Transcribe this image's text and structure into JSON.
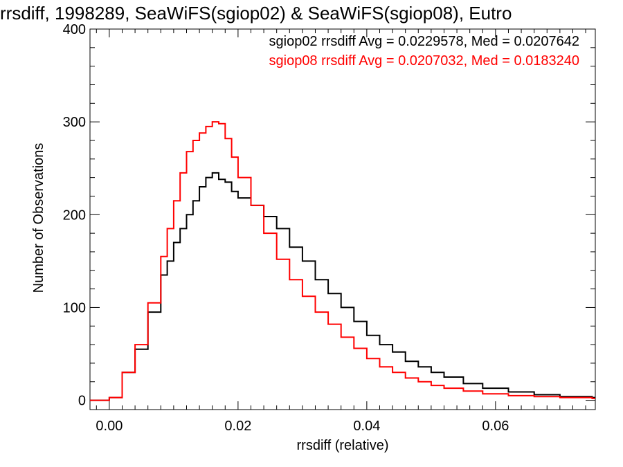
{
  "chart_data": {
    "type": "line",
    "title": "rrsdiff, 1998289, SeaWiFS(sgiop02) & SeaWiFS(sgiop08), Eutro",
    "xlabel": "rrsdiff (relative)",
    "ylabel": "Number of Observations",
    "xlim": [
      -0.003,
      0.0755
    ],
    "ylim": [
      -10,
      400
    ],
    "xticks": [
      0.0,
      0.02,
      0.04,
      0.06
    ],
    "xtick_labels": [
      "0.00",
      "0.02",
      "0.04",
      "0.06"
    ],
    "yticks": [
      0,
      100,
      200,
      300,
      400
    ],
    "ytick_labels": [
      "0",
      "100",
      "200",
      "300",
      "400"
    ],
    "grid": false,
    "legend_position": "top-right",
    "legend": [
      "sgiop02 rrsdiff Avg = 0.0229578, Med = 0.0207642",
      "sgiop08 rrsdiff Avg = 0.0207032, Med = 0.0183240"
    ],
    "series": [
      {
        "color": "#000000",
        "x": [
          0.0,
          0.002,
          0.004,
          0.006,
          0.008,
          0.009,
          0.01,
          0.011,
          0.012,
          0.013,
          0.014,
          0.015,
          0.016,
          0.017,
          0.018,
          0.019,
          0.02,
          0.022,
          0.024,
          0.026,
          0.028,
          0.03,
          0.032,
          0.034,
          0.036,
          0.038,
          0.04,
          0.042,
          0.044,
          0.046,
          0.048,
          0.05,
          0.052,
          0.055,
          0.058,
          0.062,
          0.066,
          0.07,
          0.075
        ],
        "y": [
          3,
          30,
          55,
          95,
          135,
          150,
          170,
          185,
          200,
          215,
          230,
          240,
          245,
          238,
          235,
          225,
          218,
          210,
          198,
          185,
          165,
          150,
          130,
          115,
          100,
          85,
          70,
          60,
          52,
          42,
          36,
          30,
          25,
          18,
          13,
          9,
          6,
          4,
          3
        ]
      },
      {
        "color": "#ff0000",
        "x": [
          0.0,
          0.002,
          0.004,
          0.006,
          0.008,
          0.009,
          0.01,
          0.011,
          0.012,
          0.013,
          0.014,
          0.015,
          0.016,
          0.017,
          0.018,
          0.019,
          0.02,
          0.022,
          0.024,
          0.026,
          0.028,
          0.03,
          0.032,
          0.034,
          0.036,
          0.038,
          0.04,
          0.042,
          0.044,
          0.046,
          0.048,
          0.05,
          0.052,
          0.055,
          0.058,
          0.062,
          0.066,
          0.07,
          0.075
        ],
        "y": [
          3,
          30,
          60,
          105,
          155,
          185,
          215,
          245,
          268,
          280,
          288,
          295,
          300,
          298,
          282,
          262,
          240,
          210,
          180,
          152,
          130,
          112,
          95,
          82,
          68,
          56,
          45,
          36,
          30,
          24,
          20,
          16,
          13,
          10,
          7,
          5,
          4,
          3,
          2
        ]
      }
    ]
  }
}
